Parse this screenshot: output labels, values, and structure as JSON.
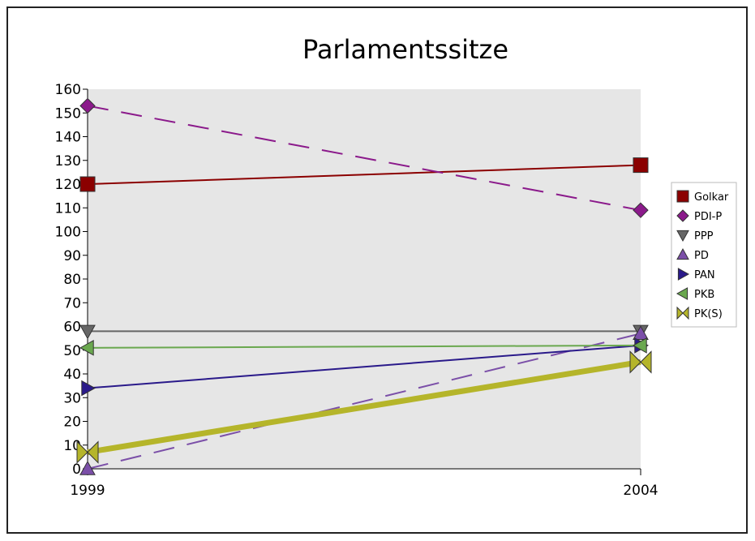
{
  "chart_data": {
    "type": "line",
    "title": "Parlamentssitze",
    "xlabel": "",
    "ylabel": "",
    "categories": [
      "1999",
      "2004"
    ],
    "ylim": [
      0,
      160
    ],
    "yticks": [
      0,
      10,
      20,
      30,
      40,
      50,
      60,
      70,
      80,
      90,
      100,
      110,
      120,
      130,
      140,
      150,
      160
    ],
    "grid": false,
    "legend_position": "right",
    "series": [
      {
        "name": "Golkar",
        "values": [
          120,
          128
        ],
        "color": "#8b0000",
        "marker": "square",
        "line_style": "solid"
      },
      {
        "name": "PDI-P",
        "values": [
          153,
          109
        ],
        "color": "#8b1a8b",
        "marker": "diamond",
        "line_style": "dashed"
      },
      {
        "name": "PPP",
        "values": [
          58,
          58
        ],
        "color": "#666666",
        "marker": "triangle-down",
        "line_style": "solid"
      },
      {
        "name": "PD",
        "values": [
          0,
          57
        ],
        "color": "#7b4fa8",
        "marker": "triangle-up",
        "line_style": "dashed"
      },
      {
        "name": "PAN",
        "values": [
          34,
          52
        ],
        "color": "#2a1a8a",
        "marker": "triangle-right",
        "line_style": "solid"
      },
      {
        "name": "PKB",
        "values": [
          51,
          52
        ],
        "color": "#6aa84f",
        "marker": "triangle-left",
        "line_style": "solid"
      },
      {
        "name": "PK(S)",
        "values": [
          7,
          45
        ],
        "color": "#b5b52a",
        "marker": "bowtie",
        "line_style": "thick"
      }
    ]
  }
}
